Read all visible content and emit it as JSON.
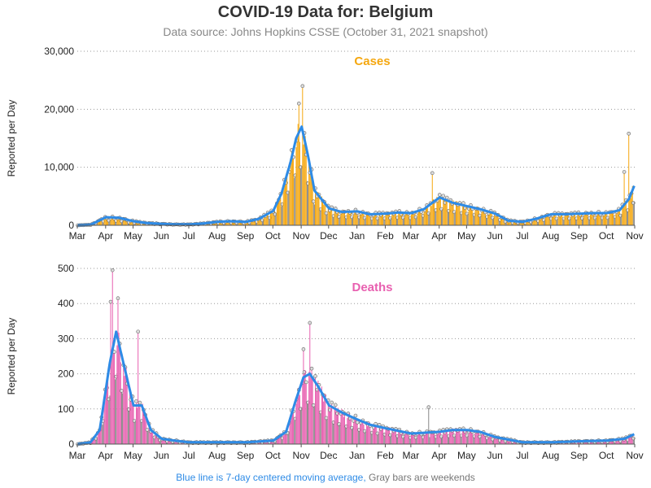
{
  "header": {
    "title": "COVID-19 Data for: Belgium",
    "subtitle": "Data source: Johns Hopkins CSSE (October 31, 2021 snapshot)"
  },
  "footer": {
    "note_blue": "Blue line is 7-day centered moving average,",
    "note_gray": "Gray bars are weekends"
  },
  "colors": {
    "cases": "#f5a70f",
    "deaths": "#e860b0",
    "average_line": "#2e8be6",
    "weekend": "#888888"
  },
  "chart_data": [
    {
      "type": "bar",
      "title": "Cases",
      "ylabel": "Reported per Day",
      "xlabel": "",
      "ylim": [
        0,
        30000
      ],
      "yticks": [
        0,
        10000,
        20000,
        30000
      ],
      "ytick_labels": [
        "0",
        "10,000",
        "20,000",
        "30,000"
      ],
      "xticks": [
        "Mar",
        "Apr",
        "May",
        "Jun",
        "Jul",
        "Aug",
        "Sep",
        "Oct",
        "Nov",
        "Dec",
        "Jan",
        "Feb",
        "Mar",
        "Apr",
        "May",
        "Jun",
        "Jul",
        "Aug",
        "Sep",
        "Oct",
        "Nov"
      ],
      "grid": "horizontal dotted",
      "start_date": "2020-03-01",
      "end_date": "2021-10-31",
      "monthly_points": {
        "dates": [
          "2020-03-01",
          "2020-03-15",
          "2020-04-01",
          "2020-04-15",
          "2020-05-01",
          "2020-05-15",
          "2020-06-01",
          "2020-06-15",
          "2020-07-01",
          "2020-07-15",
          "2020-08-01",
          "2020-08-15",
          "2020-09-01",
          "2020-09-15",
          "2020-10-01",
          "2020-10-10",
          "2020-10-20",
          "2020-10-26",
          "2020-11-01",
          "2020-11-08",
          "2020-11-15",
          "2020-12-01",
          "2020-12-15",
          "2021-01-01",
          "2021-01-15",
          "2021-02-01",
          "2021-02-15",
          "2021-03-01",
          "2021-03-15",
          "2021-03-25",
          "2021-04-01",
          "2021-04-15",
          "2021-05-01",
          "2021-05-15",
          "2021-06-01",
          "2021-06-15",
          "2021-07-01",
          "2021-07-15",
          "2021-08-01",
          "2021-08-15",
          "2021-09-01",
          "2021-09-15",
          "2021-10-01",
          "2021-10-15",
          "2021-10-25",
          "2021-10-31"
        ],
        "average": [
          0,
          100,
          1400,
          1300,
          700,
          400,
          250,
          150,
          150,
          300,
          600,
          700,
          600,
          1100,
          2500,
          5500,
          11000,
          15000,
          17000,
          12000,
          6000,
          2900,
          2300,
          2400,
          1900,
          2000,
          2200,
          2100,
          2800,
          4000,
          4800,
          3900,
          3300,
          2800,
          2000,
          800,
          600,
          1100,
          1900,
          1900,
          2000,
          2100,
          2100,
          2600,
          4500,
          6800
        ]
      },
      "peak_markers": [
        {
          "date": "2020-11-02",
          "value": 24000
        },
        {
          "date": "2020-10-29",
          "value": 21000
        },
        {
          "date": "2021-03-24",
          "value": 9000
        },
        {
          "date": "2021-10-25",
          "value": 15800
        },
        {
          "date": "2021-10-20",
          "value": 9200
        }
      ]
    },
    {
      "type": "bar",
      "title": "Deaths",
      "ylabel": "Reported per Day",
      "xlabel": "",
      "ylim": [
        0,
        500
      ],
      "yticks": [
        0,
        100,
        200,
        300,
        400,
        500
      ],
      "ytick_labels": [
        "0",
        "100",
        "200",
        "300",
        "400",
        "500"
      ],
      "xticks": [
        "Mar",
        "Apr",
        "May",
        "Jun",
        "Jul",
        "Aug",
        "Sep",
        "Oct",
        "Nov",
        "Dec",
        "Jan",
        "Feb",
        "Mar",
        "Apr",
        "May",
        "Jun",
        "Jul",
        "Aug",
        "Sep",
        "Oct",
        "Nov"
      ],
      "grid": "horizontal dotted",
      "start_date": "2020-03-01",
      "end_date": "2021-10-31",
      "monthly_points": {
        "dates": [
          "2020-03-01",
          "2020-03-15",
          "2020-03-25",
          "2020-04-05",
          "2020-04-12",
          "2020-04-20",
          "2020-05-01",
          "2020-05-10",
          "2020-05-20",
          "2020-06-01",
          "2020-06-15",
          "2020-07-01",
          "2020-08-01",
          "2020-09-01",
          "2020-10-01",
          "2020-10-15",
          "2020-10-25",
          "2020-11-03",
          "2020-11-10",
          "2020-11-20",
          "2020-12-01",
          "2020-12-15",
          "2021-01-01",
          "2021-01-15",
          "2021-02-01",
          "2021-03-01",
          "2021-04-01",
          "2021-04-15",
          "2021-05-01",
          "2021-05-15",
          "2021-06-01",
          "2021-07-01",
          "2021-08-01",
          "2021-09-01",
          "2021-10-01",
          "2021-10-20",
          "2021-10-31"
        ],
        "average": [
          0,
          5,
          40,
          230,
          320,
          230,
          110,
          110,
          40,
          15,
          10,
          5,
          5,
          5,
          10,
          35,
          120,
          190,
          200,
          160,
          110,
          90,
          70,
          55,
          45,
          30,
          35,
          40,
          40,
          35,
          20,
          5,
          5,
          8,
          10,
          15,
          28
        ]
      },
      "peak_markers": [
        {
          "date": "2020-04-08",
          "value": 495
        },
        {
          "date": "2020-04-06",
          "value": 405
        },
        {
          "date": "2020-04-14",
          "value": 415
        },
        {
          "date": "2020-05-06",
          "value": 320
        },
        {
          "date": "2020-11-10",
          "value": 345
        },
        {
          "date": "2020-11-03",
          "value": 270
        },
        {
          "date": "2021-03-20",
          "value": 105
        }
      ]
    }
  ]
}
